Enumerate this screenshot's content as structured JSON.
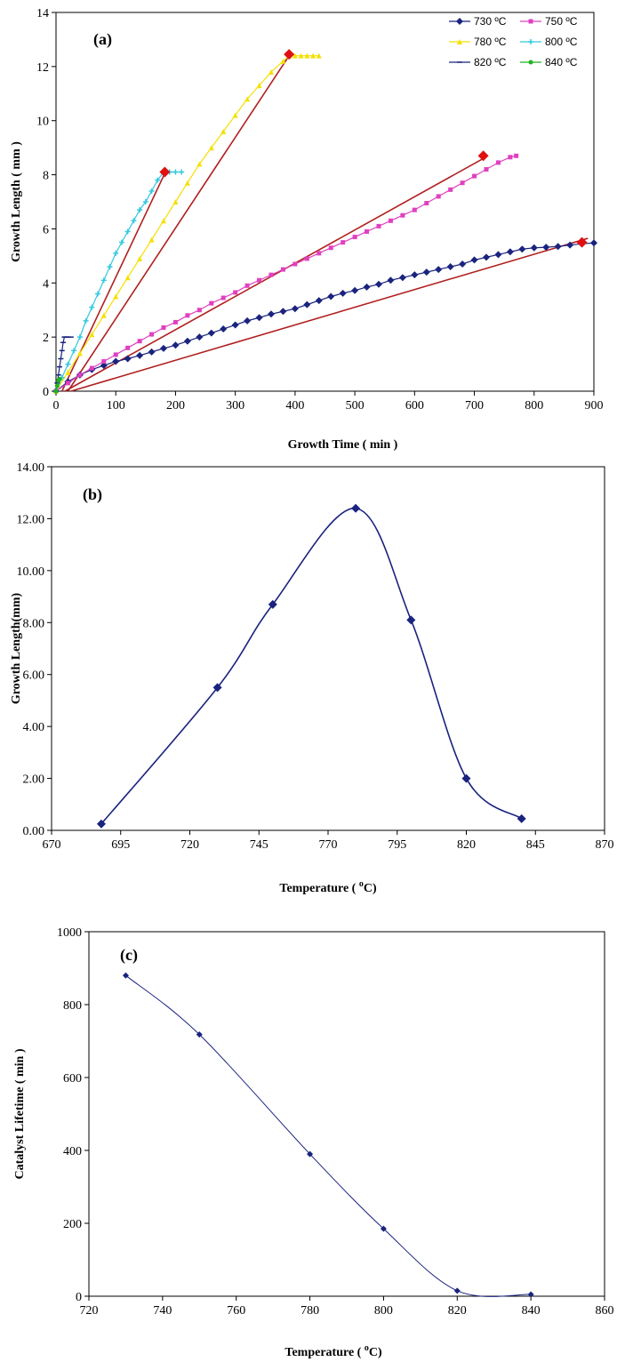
{
  "chart_data": [
    {
      "type": "line",
      "panel_label": "(a)",
      "xlabel": "Growth Time ( min )",
      "ylabel": "Growth Length ( mm )",
      "xlim": [
        0,
        900
      ],
      "ylim": [
        0,
        14
      ],
      "xticks": [
        "0",
        "100",
        "200",
        "300",
        "400",
        "500",
        "600",
        "700",
        "800",
        "900"
      ],
      "yticks": [
        "0",
        "2",
        "4",
        "6",
        "8",
        "10",
        "12",
        "14"
      ],
      "grid": false,
      "legend_position": "top-right",
      "series": [
        {
          "name": "730 ºC",
          "color": "#1a237e",
          "marker": "diamond",
          "x": [
            0,
            20,
            40,
            60,
            80,
            100,
            120,
            140,
            160,
            180,
            200,
            220,
            240,
            260,
            280,
            300,
            320,
            340,
            360,
            380,
            400,
            420,
            440,
            460,
            480,
            500,
            520,
            540,
            560,
            580,
            600,
            620,
            640,
            660,
            680,
            700,
            720,
            740,
            760,
            780,
            800,
            820,
            840,
            860,
            880,
            900
          ],
          "y": [
            0,
            0.35,
            0.6,
            0.8,
            0.95,
            1.1,
            1.2,
            1.32,
            1.45,
            1.58,
            1.7,
            1.85,
            2.0,
            2.15,
            2.3,
            2.45,
            2.6,
            2.72,
            2.85,
            2.95,
            3.05,
            3.2,
            3.35,
            3.5,
            3.62,
            3.72,
            3.85,
            3.95,
            4.1,
            4.2,
            4.3,
            4.4,
            4.5,
            4.6,
            4.7,
            4.85,
            4.95,
            5.05,
            5.15,
            5.25,
            5.3,
            5.32,
            5.35,
            5.4,
            5.45,
            5.48
          ]
        },
        {
          "name": "750 ºC",
          "color": "#e040c0",
          "marker": "square",
          "x": [
            0,
            20,
            40,
            60,
            80,
            100,
            120,
            140,
            160,
            180,
            200,
            220,
            240,
            260,
            280,
            300,
            320,
            340,
            360,
            380,
            400,
            420,
            440,
            460,
            480,
            500,
            520,
            540,
            560,
            580,
            600,
            620,
            640,
            660,
            680,
            700,
            720,
            740,
            760,
            770
          ],
          "y": [
            0,
            0.3,
            0.6,
            0.85,
            1.1,
            1.35,
            1.6,
            1.85,
            2.1,
            2.35,
            2.55,
            2.8,
            3.0,
            3.25,
            3.45,
            3.65,
            3.9,
            4.1,
            4.3,
            4.5,
            4.7,
            4.9,
            5.1,
            5.3,
            5.5,
            5.7,
            5.9,
            6.1,
            6.3,
            6.5,
            6.7,
            6.95,
            7.2,
            7.45,
            7.7,
            7.95,
            8.2,
            8.45,
            8.65,
            8.7
          ]
        },
        {
          "name": "780 ºC",
          "color": "#f5e000",
          "marker": "triangle",
          "x": [
            0,
            20,
            40,
            60,
            80,
            100,
            120,
            140,
            160,
            180,
            200,
            220,
            240,
            260,
            280,
            300,
            320,
            340,
            360,
            380,
            390,
            400,
            410,
            420,
            430,
            440
          ],
          "y": [
            0,
            0.7,
            1.4,
            2.1,
            2.8,
            3.5,
            4.2,
            4.9,
            5.6,
            6.3,
            7.0,
            7.7,
            8.4,
            9.0,
            9.6,
            10.2,
            10.8,
            11.3,
            11.8,
            12.2,
            12.4,
            12.4,
            12.4,
            12.4,
            12.4,
            12.4
          ]
        },
        {
          "name": "800 ºC",
          "color": "#33c8e0",
          "marker": "star",
          "x": [
            0,
            10,
            20,
            30,
            40,
            50,
            60,
            70,
            80,
            90,
            100,
            110,
            120,
            130,
            140,
            150,
            160,
            170,
            180,
            190,
            200,
            210
          ],
          "y": [
            0,
            0.5,
            1.0,
            1.5,
            2.0,
            2.6,
            3.1,
            3.6,
            4.1,
            4.6,
            5.1,
            5.5,
            5.9,
            6.3,
            6.7,
            7.0,
            7.4,
            7.8,
            8.1,
            8.1,
            8.1,
            8.1
          ]
        },
        {
          "name": "820 ºC",
          "color": "#1a237e",
          "marker": "dash",
          "x": [
            0,
            2,
            4,
            6,
            8,
            10,
            12,
            14,
            16,
            18,
            20,
            25
          ],
          "y": [
            0,
            0.3,
            0.6,
            0.9,
            1.2,
            1.5,
            1.8,
            2.0,
            2.0,
            2.0,
            2.0,
            2.0
          ]
        },
        {
          "name": "840 ºC",
          "color": "#22b022",
          "marker": "circle",
          "x": [
            0,
            2,
            4,
            6
          ],
          "y": [
            0,
            0.2,
            0.4,
            0.45
          ]
        }
      ],
      "fit_lines": {
        "color": "#b02020",
        "lines": [
          {
            "x": [
              25,
              890
            ],
            "y": [
              0,
              5.65
            ]
          },
          {
            "x": [
              15,
              715
            ],
            "y": [
              0,
              8.6
            ]
          },
          {
            "x": [
              20,
              390
            ],
            "y": [
              0,
              12.4
            ]
          },
          {
            "x": [
              10,
              182
            ],
            "y": [
              0,
              8.05
            ]
          }
        ]
      },
      "end_markers": {
        "color": "#e01010",
        "points": [
          {
            "x": 880,
            "y": 5.5
          },
          {
            "x": 715,
            "y": 8.7
          },
          {
            "x": 390,
            "y": 12.45
          },
          {
            "x": 182,
            "y": 8.1
          }
        ]
      }
    },
    {
      "type": "line",
      "panel_label": "(b)",
      "xlabel": "Temperature ( ",
      "xlabel_sup": "o",
      "xlabel_end": "C)",
      "ylabel": "Growth Length(mm)",
      "xlim": [
        670,
        870
      ],
      "ylim": [
        0,
        14
      ],
      "xticks": [
        "670",
        "695",
        "720",
        "745",
        "770",
        "795",
        "820",
        "845",
        "870"
      ],
      "yticks": [
        "0.00",
        "2.00",
        "4.00",
        "6.00",
        "8.00",
        "10.00",
        "12.00",
        "14.00"
      ],
      "grid": false,
      "line_color": "#1a237e",
      "x": [
        688,
        730,
        750,
        780,
        800,
        820,
        840
      ],
      "y": [
        0.25,
        5.5,
        8.7,
        12.4,
        8.1,
        2.0,
        0.45
      ]
    },
    {
      "type": "line",
      "panel_label": "(c)",
      "xlabel": "Temperature ( ",
      "xlabel_sup": "o",
      "xlabel_end": "C)",
      "ylabel": "Catalyst Lifetime ( min )",
      "xlim": [
        720,
        860
      ],
      "ylim": [
        0,
        1000
      ],
      "xticks": [
        "720",
        "740",
        "760",
        "780",
        "800",
        "820",
        "840",
        "860"
      ],
      "yticks": [
        "0",
        "200",
        "400",
        "600",
        "800",
        "1000"
      ],
      "grid": false,
      "line_color": "#1a237e",
      "x": [
        730,
        750,
        780,
        800,
        820,
        840
      ],
      "y": [
        880,
        718,
        390,
        185,
        15,
        5
      ]
    }
  ]
}
